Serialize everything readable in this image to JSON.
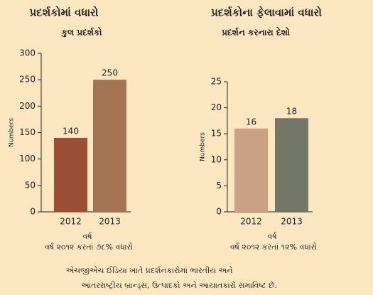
{
  "chart_data": [
    {
      "type": "bar",
      "title": "પ્રદર્શકોમાં વધારો",
      "subtitle": "કુલ પ્રદર્શકો",
      "ylabel": "Numbers",
      "xlabel": "વર્ષ",
      "note": "વર્ષ ૨૦૧૨ કરતાં ૭૮% વધારો",
      "categories": [
        "2012",
        "2013"
      ],
      "values": [
        140,
        250
      ],
      "colors": [
        "#9c4f37",
        "#a57453"
      ],
      "ylim": [
        0,
        300
      ],
      "yticks": [
        0,
        50,
        100,
        150,
        200,
        250,
        300
      ]
    },
    {
      "type": "bar",
      "title": "પ્રદર્શકોના ફેલાવામાં વધારો",
      "subtitle": "પ્રદર્શન કરનારા દેશો",
      "ylabel": "Numbers",
      "xlabel": "વર્ષ",
      "note": "વર્ષ ૨૦૧૨ કરતાં ૧૨% વધારો",
      "categories": [
        "2012",
        "2013"
      ],
      "values": [
        16,
        18
      ],
      "colors": [
        "#c9a185",
        "#737866"
      ],
      "ylim": [
        0,
        25
      ],
      "yticks": [
        0,
        5,
        10,
        15,
        20,
        25
      ]
    }
  ],
  "footer": [
    "એચજીએચ ઈંડિયા ખાતે પ્રદર્શનકારોમાં ભારતીય અને",
    "આંતરરાષ્ટ્રીય બ્રાન્ડ્સ, ઉત્પાદકો અને આયાતકારો સમાવિષ્ટ છે."
  ]
}
